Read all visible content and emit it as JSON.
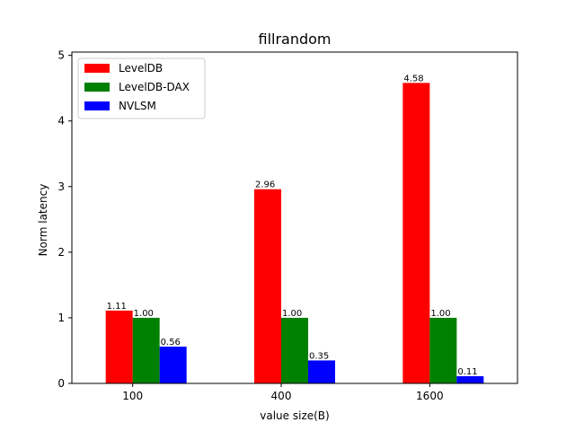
{
  "chart_data": {
    "type": "bar",
    "title": "fillrandom",
    "xlabel": "value size(B)",
    "ylabel": "Norm latency",
    "categories": [
      "100",
      "400",
      "1600"
    ],
    "ylim": [
      0,
      5.05
    ],
    "yticks": [
      "0",
      "1",
      "2",
      "3",
      "4",
      "5"
    ],
    "legend_position": "upper-left",
    "grid": false,
    "series": [
      {
        "name": "LevelDB",
        "color": "#ff0000",
        "values": [
          1.11,
          2.96,
          4.58
        ],
        "labels": [
          "1.11",
          "2.96",
          "4.58"
        ]
      },
      {
        "name": "LevelDB-DAX",
        "color": "#008000",
        "values": [
          1.0,
          1.0,
          1.0
        ],
        "labels": [
          "1.00",
          "1.00",
          "1.00"
        ]
      },
      {
        "name": "NVLSM",
        "color": "#0000ff",
        "values": [
          0.56,
          0.35,
          0.11
        ],
        "labels": [
          "0.56",
          "0.35",
          "0.11"
        ]
      }
    ]
  }
}
